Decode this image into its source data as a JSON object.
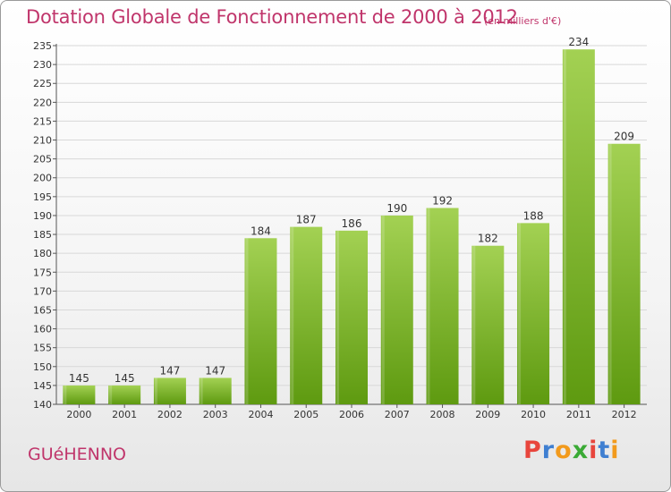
{
  "title": "Dotation Globale de Fonctionnement de 2000 à 2012",
  "subtitle": "(en milliers d'€)",
  "commune": "GUéHENNO",
  "brand": {
    "text": "Proxiti",
    "colors": [
      "#e8453c",
      "#3f7fd1",
      "#f29a1c",
      "#3aaa35",
      "#e8453c",
      "#3f7fd1",
      "#f29a1c"
    ]
  },
  "colors": {
    "title": "#c0356b",
    "bar_top": "#a3d153",
    "bar_bottom": "#5e9a10",
    "grid": "#d8d8d8"
  },
  "chart_data": {
    "type": "bar",
    "categories": [
      "2000",
      "2001",
      "2002",
      "2003",
      "2004",
      "2005",
      "2006",
      "2007",
      "2008",
      "2009",
      "2010",
      "2011",
      "2012"
    ],
    "values": [
      145,
      145,
      147,
      147,
      184,
      187,
      186,
      190,
      192,
      182,
      188,
      234,
      209
    ],
    "ylim": [
      140,
      235
    ],
    "yticks": [
      140,
      145,
      150,
      155,
      160,
      165,
      170,
      175,
      180,
      185,
      190,
      195,
      200,
      205,
      210,
      215,
      220,
      225,
      230,
      235
    ],
    "grid": true,
    "data_labels": true
  }
}
